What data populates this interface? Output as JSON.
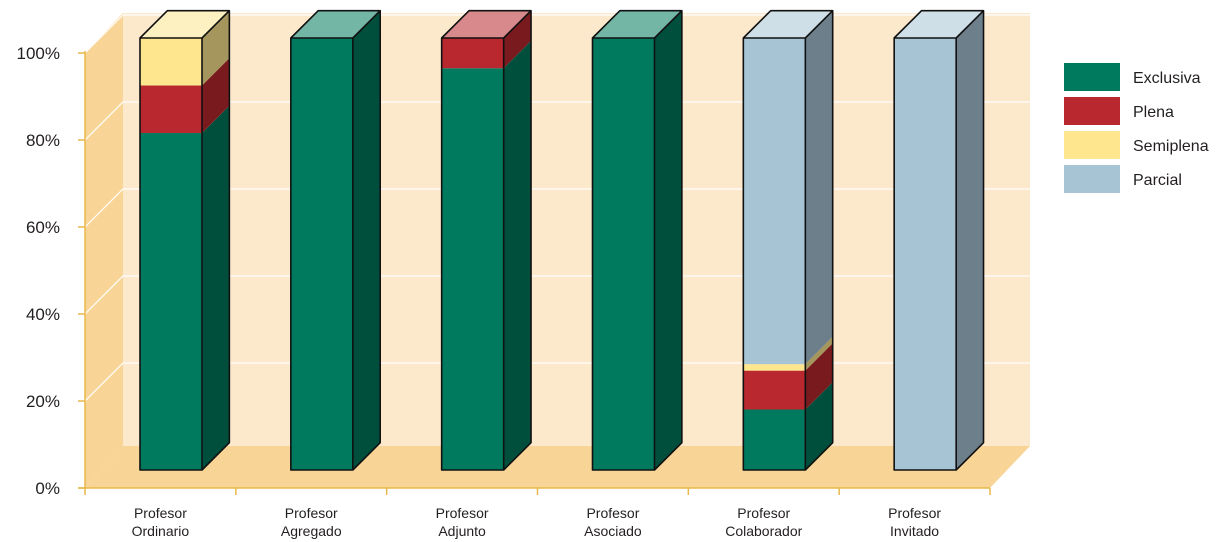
{
  "chart_data": {
    "type": "bar",
    "stacked": true,
    "three_d": true,
    "categories": [
      "Profesor Ordinario",
      "Profesor Agregado",
      "Profesor Adjunto",
      "Profesor Asociado",
      "Profesor Colaborador",
      "Profesor Invitado"
    ],
    "category_lines": [
      [
        "Profesor",
        "Ordinario"
      ],
      [
        "Profesor",
        "Agregado"
      ],
      [
        "Profesor",
        "Adjunto"
      ],
      [
        "Profesor",
        "Asociado"
      ],
      [
        "Profesor",
        "Colaborador"
      ],
      [
        "Profesor",
        "Invitado"
      ]
    ],
    "series": [
      {
        "name": "Exclusiva",
        "values": [
          78,
          100,
          93,
          100,
          14,
          0
        ],
        "color": "#007a5e"
      },
      {
        "name": "Plena",
        "values": [
          11,
          0,
          7,
          0,
          9,
          0
        ],
        "color": "#b8282e"
      },
      {
        "name": "Semiplena",
        "values": [
          11,
          0,
          0,
          0,
          1.5,
          0
        ],
        "color": "#fde68e"
      },
      {
        "name": "Parcial",
        "values": [
          0,
          0,
          0,
          0,
          75.5,
          100
        ],
        "color": "#a7c4d5"
      }
    ],
    "ylim": [
      0,
      100
    ],
    "yticks": [
      "0%",
      "20%",
      "40%",
      "60%",
      "80%",
      "100%"
    ],
    "legend_position": "right",
    "grid": true,
    "wall_color": "#fce9cb",
    "floor_color": "#f8d596",
    "axis_color": "#e8b84a"
  }
}
